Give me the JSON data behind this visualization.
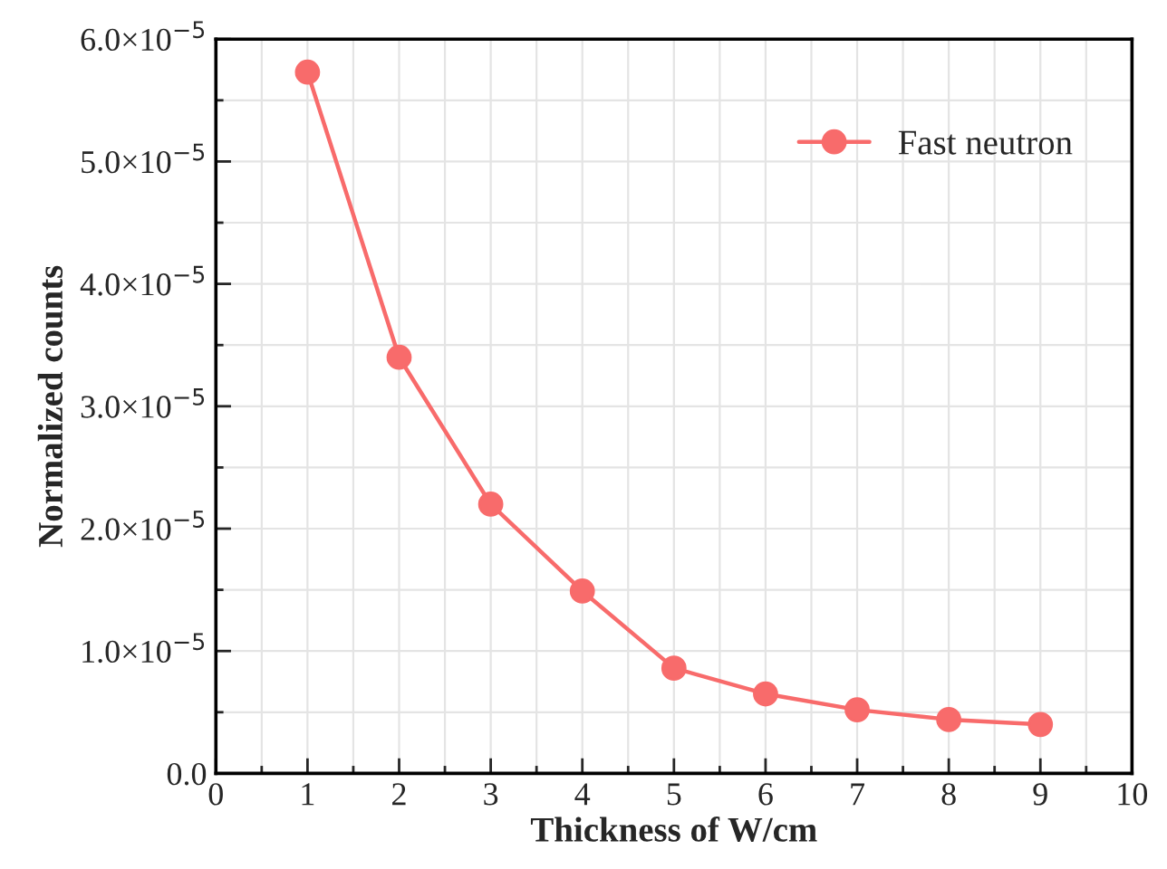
{
  "chart_data": {
    "type": "line",
    "xlabel": "Thickness of W/cm",
    "ylabel": "Normalized counts",
    "x": [
      1,
      2,
      3,
      4,
      5,
      6,
      7,
      8,
      9
    ],
    "series": [
      {
        "name": "Fast neutron",
        "color": "#f86b6b",
        "values": [
          5.73e-05,
          3.4e-05,
          2.2e-05,
          1.49e-05,
          8.6e-06,
          6.5e-06,
          5.2e-06,
          4.4e-06,
          4e-06
        ]
      }
    ],
    "xlim": [
      0,
      10
    ],
    "xticks": [
      0,
      1,
      2,
      3,
      4,
      5,
      6,
      7,
      8,
      9,
      10
    ],
    "ylim": [
      0,
      6e-05
    ],
    "yticks": [
      {
        "value": 0,
        "label": "0.0"
      },
      {
        "value": 1e-05,
        "label": "1.0×10$^{−5}$"
      },
      {
        "value": 2e-05,
        "label": "2.0×10$^{−5}$"
      },
      {
        "value": 3e-05,
        "label": "3.0×10$^{−5}$"
      },
      {
        "value": 4e-05,
        "label": "4.0×10$^{−5}$"
      },
      {
        "value": 5e-05,
        "label": "5.0×10$^{−5}$"
      },
      {
        "value": 6e-05,
        "label": "6.0×10$^{−5}$"
      }
    ],
    "grid": true,
    "legend": "top right",
    "marker": "circle",
    "line_style": "solid"
  }
}
